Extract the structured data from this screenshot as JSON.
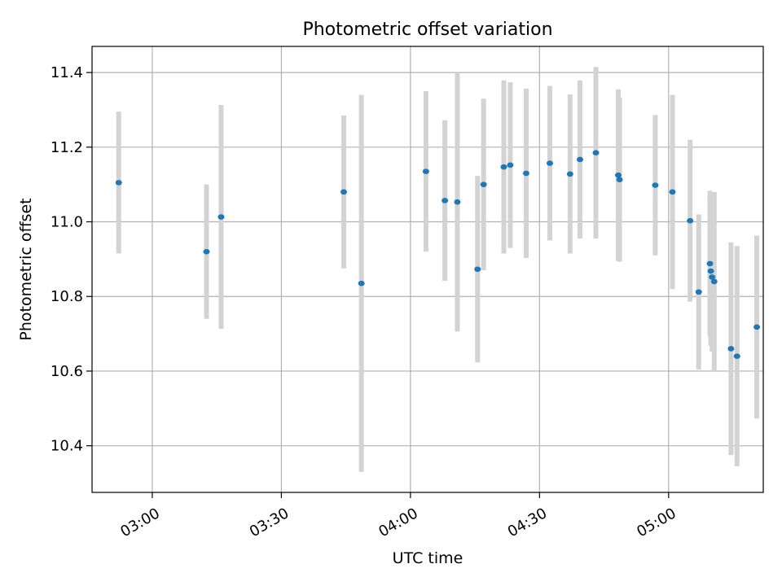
{
  "chart_data": {
    "type": "scatter",
    "title": "Photometric offset variation",
    "xlabel": "UTC time",
    "ylabel": "Photometric offset",
    "x_unit": "minutes after 00:00 UTC",
    "xlim": [
      166,
      322
    ],
    "ylim": [
      10.275,
      11.47
    ],
    "x_ticks": [
      {
        "value": 180,
        "label": "03:00"
      },
      {
        "value": 210,
        "label": "03:30"
      },
      {
        "value": 240,
        "label": "04:00"
      },
      {
        "value": 270,
        "label": "04:30"
      },
      {
        "value": 300,
        "label": "05:00"
      }
    ],
    "y_ticks": [
      {
        "value": 10.4,
        "label": "10.4"
      },
      {
        "value": 10.6,
        "label": "10.6"
      },
      {
        "value": 10.8,
        "label": "10.8"
      },
      {
        "value": 11.0,
        "label": "11.0"
      },
      {
        "value": 11.2,
        "label": "11.2"
      },
      {
        "value": 11.4,
        "label": "11.4"
      }
    ],
    "grid": true,
    "colors": {
      "points": "#1f77b4",
      "error_bars": "#d3d3d3",
      "grid": "#b0b0b0"
    },
    "points": [
      {
        "x": 172.2,
        "y": 11.105,
        "err": 0.19
      },
      {
        "x": 192.6,
        "y": 10.92,
        "err": 0.18
      },
      {
        "x": 196.0,
        "y": 11.013,
        "err": 0.3
      },
      {
        "x": 224.5,
        "y": 11.08,
        "err": 0.205
      },
      {
        "x": 228.6,
        "y": 10.835,
        "err": 0.505
      },
      {
        "x": 243.6,
        "y": 11.135,
        "err": 0.215
      },
      {
        "x": 248.0,
        "y": 11.057,
        "err": 0.215
      },
      {
        "x": 250.9,
        "y": 11.053,
        "err": 0.347
      },
      {
        "x": 255.6,
        "y": 10.873,
        "err": 0.25
      },
      {
        "x": 257.0,
        "y": 11.1,
        "err": 0.23
      },
      {
        "x": 261.7,
        "y": 11.147,
        "err": 0.232
      },
      {
        "x": 263.2,
        "y": 11.152,
        "err": 0.222
      },
      {
        "x": 266.9,
        "y": 11.13,
        "err": 0.227
      },
      {
        "x": 272.4,
        "y": 11.157,
        "err": 0.207
      },
      {
        "x": 277.1,
        "y": 11.128,
        "err": 0.213
      },
      {
        "x": 279.4,
        "y": 11.167,
        "err": 0.212
      },
      {
        "x": 283.1,
        "y": 11.185,
        "err": 0.23
      },
      {
        "x": 288.3,
        "y": 11.125,
        "err": 0.23
      },
      {
        "x": 288.6,
        "y": 11.113,
        "err": 0.22
      },
      {
        "x": 296.9,
        "y": 11.098,
        "err": 0.188
      },
      {
        "x": 300.9,
        "y": 11.08,
        "err": 0.26
      },
      {
        "x": 305.0,
        "y": 11.003,
        "err": 0.217
      },
      {
        "x": 307.0,
        "y": 10.812,
        "err": 0.208
      },
      {
        "x": 309.6,
        "y": 10.888,
        "err": 0.195
      },
      {
        "x": 309.8,
        "y": 10.868,
        "err": 0.2
      },
      {
        "x": 310.1,
        "y": 10.852,
        "err": 0.2
      },
      {
        "x": 310.6,
        "y": 10.84,
        "err": 0.24
      },
      {
        "x": 314.5,
        "y": 10.66,
        "err": 0.285
      },
      {
        "x": 315.9,
        "y": 10.64,
        "err": 0.295
      },
      {
        "x": 320.5,
        "y": 10.718,
        "err": 0.245
      }
    ]
  }
}
